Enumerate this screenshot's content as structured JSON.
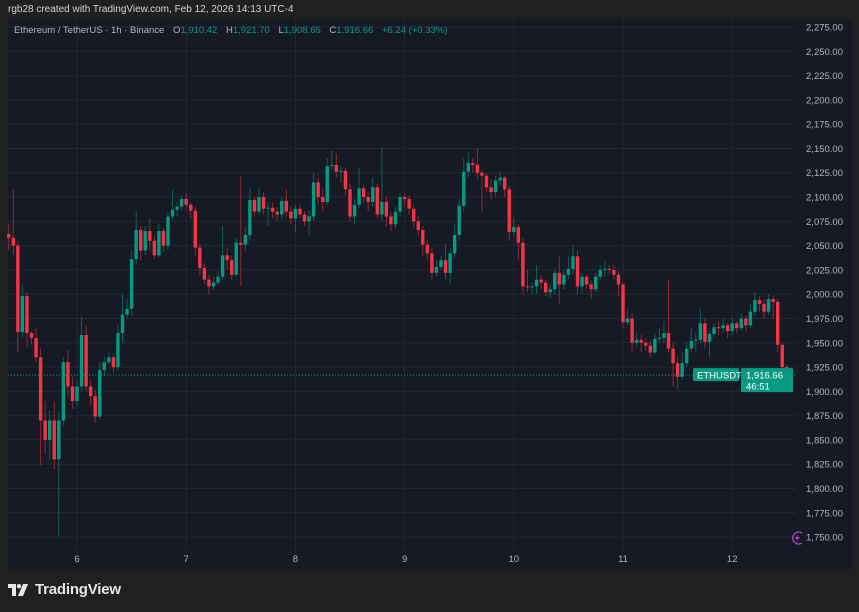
{
  "credit": "rgb28 created with TradingView.com, Feb 12, 2026 14:13 UTC-4",
  "legend": {
    "symbol": "Ethereum / TetherUS · 1h · Binance",
    "o_label": "O",
    "o": "1,910.42",
    "h_label": "H",
    "h": "1,921.70",
    "l_label": "L",
    "l": "1,908.65",
    "c_label": "C",
    "c": "1,916.66",
    "change": "+6.24 (+0.33%)"
  },
  "price_tag": {
    "ticker": "ETHUSDT",
    "price": "1,916.66",
    "countdown": "46:51"
  },
  "brand": "TradingView",
  "colors": {
    "up": "#089981",
    "down": "#f23645",
    "background": "#161a25",
    "grid": "#232733",
    "axis_text": "#b2b5be"
  },
  "icons": {
    "alert": "lightning-icon",
    "logo": "tradingview-logo-icon"
  },
  "chart_data": {
    "type": "candlestick",
    "interval": "1h",
    "ylim": [
      1740,
      2285
    ],
    "grid": true,
    "y_ticks": [
      "2,275.00",
      "2,250.00",
      "2,225.00",
      "2,200.00",
      "2,175.00",
      "2,150.00",
      "2,125.00",
      "2,100.00",
      "2,075.00",
      "2,050.00",
      "2,025.00",
      "2,000.00",
      "1,975.00",
      "1,950.00",
      "1,925.00",
      "1,900.00",
      "1,875.00",
      "1,850.00",
      "1,825.00",
      "1,800.00",
      "1,775.00",
      "1,750.00"
    ],
    "x_ticks": [
      "6",
      "7",
      "8",
      "9",
      "10",
      "11",
      "12"
    ],
    "last_price": 1916.66,
    "candles_ohlc": [
      [
        2062,
        2072,
        2045,
        2058
      ],
      [
        2058,
        2107,
        2040,
        2050
      ],
      [
        2050,
        2055,
        1940,
        1961
      ],
      [
        1961,
        2010,
        1955,
        1998
      ],
      [
        1998,
        2002,
        1945,
        1960
      ],
      [
        1960,
        1962,
        1948,
        1955
      ],
      [
        1955,
        1965,
        1930,
        1935
      ],
      [
        1935,
        1945,
        1824,
        1870
      ],
      [
        1870,
        1890,
        1835,
        1850
      ],
      [
        1850,
        1880,
        1830,
        1870
      ],
      [
        1870,
        1890,
        1820,
        1830
      ],
      [
        1830,
        1880,
        1750,
        1870
      ],
      [
        1870,
        1935,
        1865,
        1930
      ],
      [
        1930,
        1942,
        1895,
        1905
      ],
      [
        1905,
        1915,
        1882,
        1890
      ],
      [
        1890,
        1912,
        1885,
        1905
      ],
      [
        1905,
        1977,
        1900,
        1958
      ],
      [
        1958,
        1968,
        1900,
        1905
      ],
      [
        1905,
        1912,
        1885,
        1895
      ],
      [
        1895,
        1902,
        1868,
        1874
      ],
      [
        1874,
        1930,
        1872,
        1922
      ],
      [
        1922,
        1936,
        1915,
        1930
      ],
      [
        1930,
        1940,
        1928,
        1935
      ],
      [
        1935,
        1938,
        1920,
        1925
      ],
      [
        1925,
        1968,
        1922,
        1960
      ],
      [
        1960,
        2000,
        1950,
        1979
      ],
      [
        1979,
        1995,
        1975,
        1985
      ],
      [
        1985,
        2045,
        1978,
        2036
      ],
      [
        2036,
        2085,
        2030,
        2066
      ],
      [
        2066,
        2070,
        2035,
        2045
      ],
      [
        2045,
        2070,
        2040,
        2065
      ],
      [
        2065,
        2078,
        2045,
        2055
      ],
      [
        2055,
        2060,
        2036,
        2040
      ],
      [
        2040,
        2072,
        2038,
        2065
      ],
      [
        2065,
        2068,
        2044,
        2050
      ],
      [
        2050,
        2084,
        2046,
        2080
      ],
      [
        2080,
        2108,
        2076,
        2087
      ],
      [
        2087,
        2095,
        2080,
        2090
      ],
      [
        2090,
        2102,
        2086,
        2098
      ],
      [
        2098,
        2104,
        2088,
        2092
      ],
      [
        2092,
        2094,
        2078,
        2086
      ],
      [
        2086,
        2090,
        2040,
        2048
      ],
      [
        2048,
        2052,
        2020,
        2027
      ],
      [
        2027,
        2032,
        2010,
        2015
      ],
      [
        2015,
        2020,
        2000,
        2008
      ],
      [
        2008,
        2018,
        2004,
        2012
      ],
      [
        2012,
        2024,
        2010,
        2018
      ],
      [
        2018,
        2070,
        2015,
        2040
      ],
      [
        2040,
        2048,
        2025,
        2035
      ],
      [
        2035,
        2040,
        2015,
        2020
      ],
      [
        2020,
        2058,
        2018,
        2053
      ],
      [
        2053,
        2121,
        2008,
        2051
      ],
      [
        2051,
        2070,
        2045,
        2061
      ],
      [
        2061,
        2110,
        2055,
        2097
      ],
      [
        2097,
        2100,
        2080,
        2085
      ],
      [
        2085,
        2110,
        2082,
        2100
      ],
      [
        2100,
        2105,
        2082,
        2088
      ],
      [
        2088,
        2095,
        2070,
        2089
      ],
      [
        2089,
        2094,
        2078,
        2085
      ],
      [
        2085,
        2090,
        2075,
        2082
      ],
      [
        2082,
        2100,
        2078,
        2096
      ],
      [
        2096,
        2108,
        2080,
        2085
      ],
      [
        2085,
        2090,
        2072,
        2078
      ],
      [
        2078,
        2092,
        2064,
        2088
      ],
      [
        2088,
        2092,
        2078,
        2082
      ],
      [
        2082,
        2086,
        2070,
        2075
      ],
      [
        2075,
        2086,
        2060,
        2080
      ],
      [
        2080,
        2125,
        2076,
        2115
      ],
      [
        2115,
        2120,
        2092,
        2100
      ],
      [
        2100,
        2108,
        2085,
        2095
      ],
      [
        2095,
        2140,
        2092,
        2132
      ],
      [
        2132,
        2148,
        2128,
        2133
      ],
      [
        2133,
        2145,
        2120,
        2126
      ],
      [
        2126,
        2132,
        2115,
        2127
      ],
      [
        2127,
        2130,
        2102,
        2108
      ],
      [
        2108,
        2114,
        2075,
        2080
      ],
      [
        2080,
        2098,
        2072,
        2092
      ],
      [
        2092,
        2130,
        2088,
        2109
      ],
      [
        2109,
        2112,
        2094,
        2100
      ],
      [
        2100,
        2105,
        2085,
        2095
      ],
      [
        2095,
        2120,
        2090,
        2110
      ],
      [
        2110,
        2114,
        2078,
        2082
      ],
      [
        2082,
        2151,
        2075,
        2095
      ],
      [
        2095,
        2100,
        2070,
        2080
      ],
      [
        2080,
        2085,
        2065,
        2072
      ],
      [
        2072,
        2090,
        2068,
        2085
      ],
      [
        2085,
        2104,
        2080,
        2100
      ],
      [
        2100,
        2104,
        2090,
        2098
      ],
      [
        2098,
        2102,
        2082,
        2088
      ],
      [
        2088,
        2092,
        2068,
        2075
      ],
      [
        2075,
        2080,
        2060,
        2066
      ],
      [
        2066,
        2070,
        2040,
        2051
      ],
      [
        2051,
        2056,
        2035,
        2042
      ],
      [
        2042,
        2048,
        2015,
        2022
      ],
      [
        2022,
        2035,
        2018,
        2028
      ],
      [
        2028,
        2040,
        2025,
        2035
      ],
      [
        2035,
        2052,
        2015,
        2022
      ],
      [
        2022,
        2046,
        2010,
        2042
      ],
      [
        2042,
        2072,
        2038,
        2061
      ],
      [
        2061,
        2098,
        2055,
        2091
      ],
      [
        2091,
        2140,
        2085,
        2126
      ],
      [
        2126,
        2146,
        2120,
        2135
      ],
      [
        2135,
        2140,
        2125,
        2133
      ],
      [
        2133,
        2150,
        2118,
        2125
      ],
      [
        2125,
        2128,
        2085,
        2122
      ],
      [
        2122,
        2125,
        2105,
        2110
      ],
      [
        2110,
        2118,
        2098,
        2105
      ],
      [
        2105,
        2122,
        2100,
        2117
      ],
      [
        2117,
        2126,
        2112,
        2120
      ],
      [
        2120,
        2122,
        2100,
        2108
      ],
      [
        2108,
        2112,
        2055,
        2064
      ],
      [
        2064,
        2078,
        2060,
        2069
      ],
      [
        2069,
        2072,
        2035,
        2053
      ],
      [
        2053,
        2058,
        2000,
        2008
      ],
      [
        2008,
        2025,
        2002,
        2007
      ],
      [
        2007,
        2012,
        2000,
        2008
      ],
      [
        2008,
        2030,
        2000,
        2015
      ],
      [
        2015,
        2020,
        2005,
        2012
      ],
      [
        2012,
        2015,
        1998,
        2002
      ],
      [
        2002,
        2010,
        1996,
        2005
      ],
      [
        2005,
        2025,
        2000,
        2022
      ],
      [
        2022,
        2040,
        1990,
        2010
      ],
      [
        2010,
        2025,
        2005,
        2020
      ],
      [
        2020,
        2040,
        2015,
        2026
      ],
      [
        2026,
        2050,
        2020,
        2039
      ],
      [
        2039,
        2045,
        2000,
        2008
      ],
      [
        2008,
        2022,
        2000,
        2018
      ],
      [
        2018,
        2020,
        2005,
        2010
      ],
      [
        2010,
        2014,
        1995,
        2005
      ],
      [
        2005,
        2022,
        2002,
        2018
      ],
      [
        2018,
        2030,
        2015,
        2025
      ],
      [
        2025,
        2034,
        2018,
        2026
      ],
      [
        2026,
        2030,
        2020,
        2025
      ],
      [
        2025,
        2030,
        2015,
        2020
      ],
      [
        2020,
        2024,
        1998,
        2010
      ],
      [
        2010,
        2012,
        1965,
        1971
      ],
      [
        1971,
        1985,
        1968,
        1975
      ],
      [
        1975,
        1980,
        1940,
        1950
      ],
      [
        1950,
        1960,
        1945,
        1953
      ],
      [
        1953,
        1958,
        1940,
        1950
      ],
      [
        1950,
        1955,
        1942,
        1947
      ],
      [
        1947,
        1952,
        1935,
        1940
      ],
      [
        1940,
        1960,
        1938,
        1954
      ],
      [
        1954,
        1965,
        1950,
        1955
      ],
      [
        1955,
        1972,
        1950,
        1960
      ],
      [
        1960,
        2015,
        1940,
        1944
      ],
      [
        1944,
        1950,
        1905,
        1929
      ],
      [
        1929,
        1935,
        1902,
        1915
      ],
      [
        1915,
        1940,
        1912,
        1929
      ],
      [
        1929,
        1950,
        1925,
        1944
      ],
      [
        1944,
        1965,
        1940,
        1952
      ],
      [
        1952,
        1960,
        1940,
        1953
      ],
      [
        1953,
        1985,
        1950,
        1970
      ],
      [
        1970,
        1975,
        1945,
        1951
      ],
      [
        1951,
        1962,
        1935,
        1959
      ],
      [
        1959,
        1970,
        1955,
        1966
      ],
      [
        1966,
        1972,
        1958,
        1965
      ],
      [
        1965,
        1975,
        1960,
        1968
      ],
      [
        1968,
        1970,
        1955,
        1962
      ],
      [
        1962,
        1975,
        1958,
        1970
      ],
      [
        1970,
        1972,
        1960,
        1965
      ],
      [
        1965,
        1980,
        1962,
        1975
      ],
      [
        1975,
        1978,
        1962,
        1968
      ],
      [
        1968,
        1990,
        1965,
        1982
      ],
      [
        1982,
        2002,
        1978,
        1994
      ],
      [
        1994,
        1998,
        1982,
        1990
      ],
      [
        1990,
        1994,
        1975,
        1982
      ],
      [
        1982,
        2000,
        1978,
        1995
      ],
      [
        1995,
        1998,
        1975,
        1992
      ],
      [
        1992,
        1995,
        1940,
        1948
      ],
      [
        1948,
        1950,
        1900,
        1925
      ],
      [
        1925,
        1928,
        1905,
        1910.42
      ],
      [
        1910.42,
        1921.7,
        1908.65,
        1916.66
      ]
    ]
  }
}
